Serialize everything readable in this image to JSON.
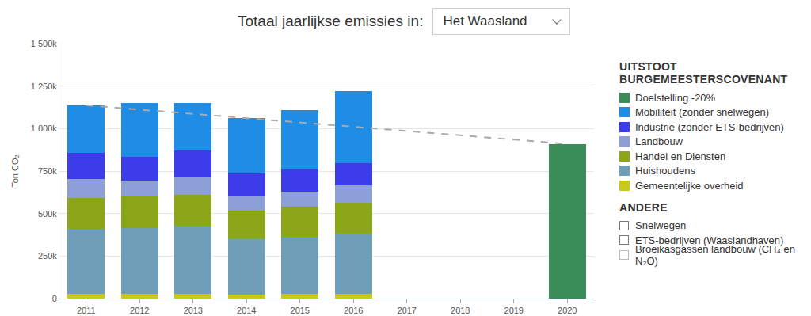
{
  "chart_data": {
    "type": "bar",
    "title": "Totaal jaarlijkse emissies in:",
    "subtitle": "Het Waasland",
    "y_label": "Ton CO₂",
    "categories": [
      "2011",
      "2012",
      "2013",
      "2014",
      "2015",
      "2016",
      "2017",
      "2018",
      "2019",
      "2020"
    ],
    "stacked": true,
    "grid": true,
    "legend": "right",
    "legend_title": "UITSTOOT BURGEMEESTERSCOVENANT",
    "other_title": "ANDERE",
    "other_items": [
      "Snelwegen",
      "ETS-bedrijven (Waaslandhaven)",
      "Broeikasgassen landbouw (CH₄ en N₂O)"
    ],
    "ylim": [
      0,
      1500000
    ],
    "yticks": [
      {
        "value": 0,
        "label": "0"
      },
      {
        "value": 250000,
        "label": "250k"
      },
      {
        "value": 500000,
        "label": "500k"
      },
      {
        "value": 750000,
        "label": "750k"
      },
      {
        "value": 1000000,
        "label": "1 000k"
      },
      {
        "value": 1250000,
        "label": "1 250k"
      },
      {
        "value": 1500000,
        "label": "1 500k"
      }
    ],
    "series": [
      {
        "name": "Gemeentelijke overheid",
        "color": "#c9c91c",
        "values": [
          30000,
          30000,
          30000,
          25000,
          28000,
          30000,
          null,
          null,
          null,
          null
        ]
      },
      {
        "name": "Huishoudens",
        "color": "#6f9fb8",
        "values": [
          380000,
          385000,
          400000,
          330000,
          337000,
          350000,
          null,
          null,
          null,
          null
        ]
      },
      {
        "name": "Handel en Diensten",
        "color": "#8ba618",
        "values": [
          180000,
          185000,
          180000,
          160000,
          175000,
          185000,
          null,
          null,
          null,
          null
        ]
      },
      {
        "name": "Landbouw",
        "color": "#8c9fd6",
        "values": [
          115000,
          95000,
          105000,
          85000,
          90000,
          100000,
          null,
          null,
          null,
          null
        ]
      },
      {
        "name": "Industrie (zonder ETS-bedrijven)",
        "color": "#3c3cea",
        "values": [
          150000,
          140000,
          155000,
          135000,
          130000,
          130000,
          null,
          null,
          null,
          null
        ]
      },
      {
        "name": "Mobiliteit (zonder snelwegen)",
        "color": "#1f8ce6",
        "values": [
          280000,
          315000,
          280000,
          325000,
          350000,
          425000,
          null,
          null,
          null,
          null
        ]
      },
      {
        "name": "Doelstelling -20%",
        "color": "#3a8c58",
        "values": [
          null,
          null,
          null,
          null,
          null,
          null,
          null,
          null,
          null,
          910000
        ]
      },
      {
        "type": "line",
        "line_style": "dashed",
        "color": "#aaaaaa",
        "values": [
          1137000,
          null,
          null,
          null,
          null,
          null,
          null,
          null,
          null,
          910000
        ]
      }
    ]
  }
}
